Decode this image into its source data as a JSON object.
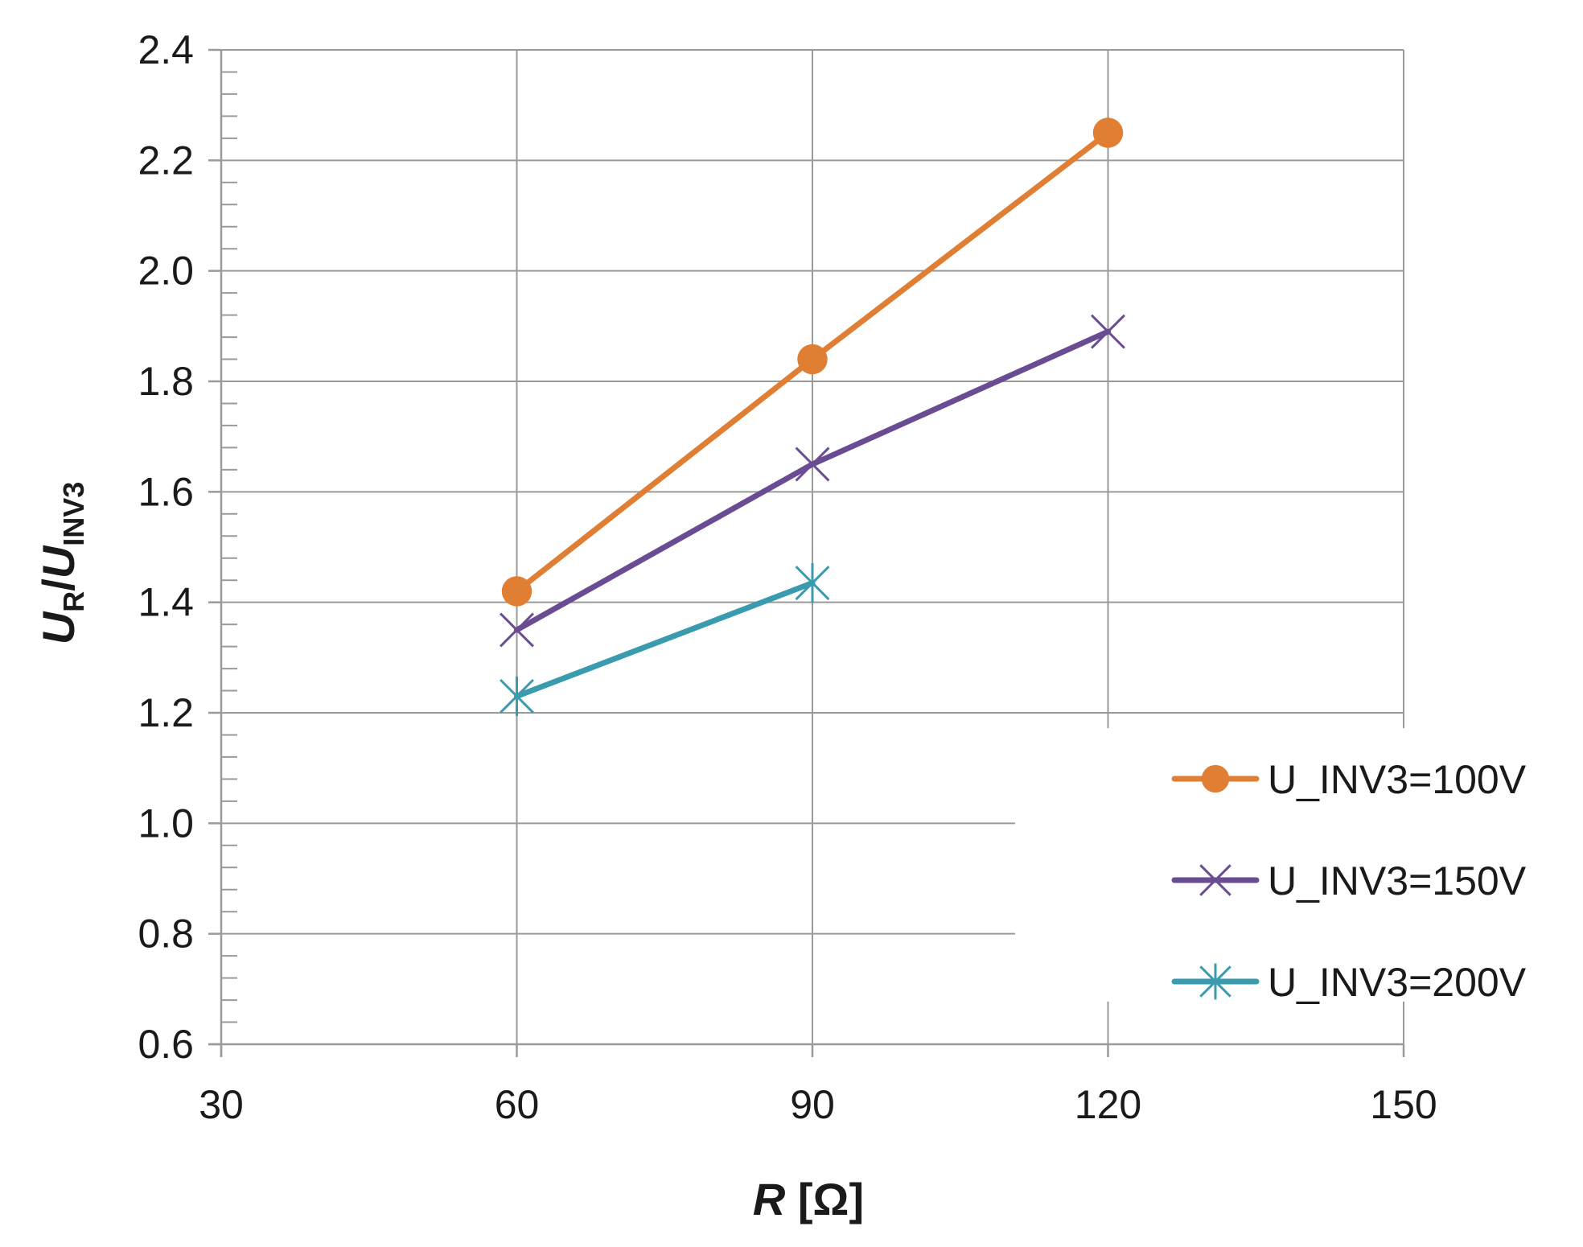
{
  "chart_data": {
    "type": "line",
    "title": "",
    "x": [
      60,
      90,
      120
    ],
    "series": [
      {
        "name": "U_INV3=100V",
        "color": "#E07E34",
        "marker": "circle",
        "x": [
          60,
          90,
          120
        ],
        "values": [
          1.42,
          1.84,
          2.25
        ]
      },
      {
        "name": "U_INV3=150V",
        "color": "#6A4C93",
        "marker": "x",
        "x": [
          60,
          90,
          120
        ],
        "values": [
          1.35,
          1.65,
          1.89
        ]
      },
      {
        "name": "U_INV3=200V",
        "color": "#3A9AAE",
        "marker": "star",
        "x": [
          60,
          90
        ],
        "values": [
          1.23,
          1.435
        ]
      }
    ],
    "xlim": [
      30,
      150
    ],
    "ylim": [
      0.6,
      2.4
    ],
    "xticks": [
      30,
      60,
      90,
      120,
      150
    ],
    "yticks": [
      0.6,
      0.8,
      1.0,
      1.2,
      1.4,
      1.6,
      1.8,
      2.0,
      2.2,
      2.4
    ],
    "xtick_labels": [
      "30",
      "60",
      "90",
      "120",
      "150"
    ],
    "ytick_labels": [
      "0.6",
      "0.8",
      "1.0",
      "1.2",
      "1.4",
      "1.6",
      "1.8",
      "2.0",
      "2.2",
      "2.4"
    ],
    "xlabel": {
      "var": "R",
      "unit": " [Ω]"
    },
    "ylabel": {
      "num": "U",
      "num_sub": "R",
      "slash": "/",
      "den": "U",
      "den_sub": "INV3"
    },
    "grid": true,
    "legend_position": "right"
  }
}
